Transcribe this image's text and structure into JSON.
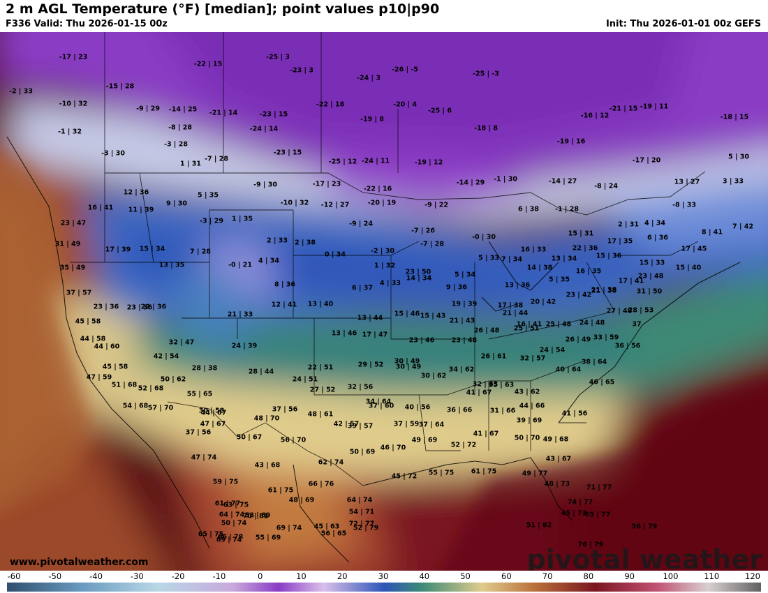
{
  "header": {
    "title": "2 m AGL Temperature (°F) [median]; point values p10|p90",
    "valid": "F336 Valid: Thu 2026-01-15 00z",
    "init": "Init: Thu 2026-01-01 00z GEFS"
  },
  "footer": {
    "website": "www.pivotalweather.com",
    "logo": "pivotal weather"
  },
  "colorbar": {
    "ticks": [
      "-60",
      "-50",
      "-40",
      "-30",
      "-20",
      "-10",
      "0",
      "10",
      "20",
      "30",
      "40",
      "50",
      "60",
      "70",
      "80",
      "90",
      "100",
      "110",
      "120"
    ],
    "units": "°F"
  },
  "points": [
    {
      "label": "-17 | 23"
    },
    {
      "label": "-25 | 3"
    },
    {
      "label": "-22 | 15"
    },
    {
      "label": "-23 | 3"
    },
    {
      "label": "-26 | -5"
    },
    {
      "label": "-25 | -3"
    },
    {
      "label": "-2 | 33"
    },
    {
      "label": "-15 | 28"
    },
    {
      "label": "-10 | 32"
    },
    {
      "label": "-24 | 3"
    },
    {
      "label": "-22 | 18"
    },
    {
      "label": "-20 | 4"
    },
    {
      "label": "-25 | 6"
    },
    {
      "label": "-9 | 29"
    },
    {
      "label": "-14 | 25"
    },
    {
      "label": "-21 | 14"
    },
    {
      "label": "-23 | 15"
    },
    {
      "label": "-19 | 8"
    },
    {
      "label": "-21 | 15"
    },
    {
      "label": "-19 | 11"
    },
    {
      "label": "-16 | 12"
    },
    {
      "label": "-18 | 15"
    },
    {
      "label": "-1 | 32"
    },
    {
      "label": "-8 | 28"
    },
    {
      "label": "-24 | 14"
    },
    {
      "label": "-18 | 8"
    },
    {
      "label": "-19 | 16"
    },
    {
      "label": "-3 | 28"
    },
    {
      "label": "-3 | 30"
    },
    {
      "label": "-23 | 15"
    },
    {
      "label": "-17 | 20"
    },
    {
      "label": "5 | 30"
    },
    {
      "label": "1 | 31"
    },
    {
      "label": "-7 | 28"
    },
    {
      "label": "-25 | 12"
    },
    {
      "label": "-24 | 11"
    },
    {
      "label": "-19 | 12"
    },
    {
      "label": "-14 | 27"
    },
    {
      "label": "-8 | 24"
    },
    {
      "label": "13 | 27"
    },
    {
      "label": "3 | 33"
    },
    {
      "label": "12 | 36"
    },
    {
      "label": "5 | 35"
    },
    {
      "label": "-9 | 30"
    },
    {
      "label": "-17 | 23"
    },
    {
      "label": "-22 | 16"
    },
    {
      "label": "-14 | 29"
    },
    {
      "label": "-1 | 30"
    },
    {
      "label": "16 | 41"
    },
    {
      "label": "11 | 39"
    },
    {
      "label": "9 | 30"
    },
    {
      "label": "-10 | 32"
    },
    {
      "label": "-12 | 27"
    },
    {
      "label": "-20 | 19"
    },
    {
      "label": "-9 | 22"
    },
    {
      "label": "6 | 38"
    },
    {
      "label": "-1 | 28"
    },
    {
      "label": "-8 | 33"
    },
    {
      "label": "23 | 47"
    },
    {
      "label": "-3 | 29"
    },
    {
      "label": "1 | 35"
    },
    {
      "label": "-9 | 24"
    },
    {
      "label": "-7 | 26"
    },
    {
      "label": "2 | 31"
    },
    {
      "label": "4 | 34"
    },
    {
      "label": "7 | 42"
    },
    {
      "label": "31 | 49"
    },
    {
      "label": "2 | 33"
    },
    {
      "label": "2 | 38"
    },
    {
      "label": "-7 | 28"
    },
    {
      "label": "-0 | 30"
    },
    {
      "label": "15 | 31"
    },
    {
      "label": "17 | 35"
    },
    {
      "label": "6 | 36"
    },
    {
      "label": "8 | 41"
    },
    {
      "label": "17 | 39"
    },
    {
      "label": "15 | 34"
    },
    {
      "label": "7 | 28"
    },
    {
      "label": "0 | 34"
    },
    {
      "label": "-2 | 30"
    },
    {
      "label": "16 | 33"
    },
    {
      "label": "22 | 36"
    },
    {
      "label": "15 | 36"
    },
    {
      "label": "17 | 45"
    },
    {
      "label": "35 | 49"
    },
    {
      "label": "13 | 35"
    },
    {
      "label": "-0 | 21"
    },
    {
      "label": "4 | 34"
    },
    {
      "label": "1 | 32"
    },
    {
      "label": "5 | 33"
    },
    {
      "label": "7 | 34"
    },
    {
      "label": "13 | 34"
    },
    {
      "label": "15 | 33"
    },
    {
      "label": "15 | 40"
    },
    {
      "label": "23 | 50"
    },
    {
      "label": "5 | 34"
    },
    {
      "label": "14 | 38"
    },
    {
      "label": "16 | 35"
    },
    {
      "label": "14 | 34"
    },
    {
      "label": "5 | 35"
    },
    {
      "label": "21 | 38"
    },
    {
      "label": "23 | 48"
    },
    {
      "label": "37 | 57"
    },
    {
      "label": "23 | 36"
    },
    {
      "label": "8 | 36"
    },
    {
      "label": "6 | 37"
    },
    {
      "label": "4 | 33"
    },
    {
      "label": "9 | 36"
    },
    {
      "label": "13 | 36"
    },
    {
      "label": "17 | 41"
    },
    {
      "label": "31 | 50"
    },
    {
      "label": "23 | 36"
    },
    {
      "label": "22 | 36"
    },
    {
      "label": "12 | 41"
    },
    {
      "label": "13 | 40"
    },
    {
      "label": "19 | 39"
    },
    {
      "label": "17 | 38"
    },
    {
      "label": "20 | 42"
    },
    {
      "label": "23 | 42"
    },
    {
      "label": "21 | 38"
    },
    {
      "label": "27 | 48"
    },
    {
      "label": "28 | 53"
    },
    {
      "label": "45 | 58"
    },
    {
      "label": "21 | 33"
    },
    {
      "label": "13 | 44"
    },
    {
      "label": "15 | 46"
    },
    {
      "label": "15 | 43"
    },
    {
      "label": "21 | 43"
    },
    {
      "label": "21 | 44"
    },
    {
      "label": "16 | 41"
    },
    {
      "label": "25 | 48"
    },
    {
      "label": "24 | 48"
    },
    {
      "label": "37"
    },
    {
      "label": "44 | 58"
    },
    {
      "label": "13 | 46"
    },
    {
      "label": "17 | 47"
    },
    {
      "label": "23 | 46"
    },
    {
      "label": "23 | 48"
    },
    {
      "label": "26 | 48"
    },
    {
      "label": "25 | 51"
    },
    {
      "label": "33 | 59"
    },
    {
      "label": "32 | 47"
    },
    {
      "label": "44 | 60"
    },
    {
      "label": "24 | 39"
    },
    {
      "label": "26 | 49"
    },
    {
      "label": "36 | 56"
    },
    {
      "label": "42 | 54"
    },
    {
      "label": "30 | 49"
    },
    {
      "label": "26 | 61"
    },
    {
      "label": "32 | 57"
    },
    {
      "label": "24 | 54"
    },
    {
      "label": "45 | 58"
    },
    {
      "label": "28 | 38"
    },
    {
      "label": "22 | 51"
    },
    {
      "label": "29 | 52"
    },
    {
      "label": "30 | 49"
    },
    {
      "label": "38 | 64"
    },
    {
      "label": "47 | 59"
    },
    {
      "label": "50 | 62"
    },
    {
      "label": "28 | 44"
    },
    {
      "label": "24 | 51"
    },
    {
      "label": "34 | 62"
    },
    {
      "label": "30 | 62"
    },
    {
      "label": "40 | 64"
    },
    {
      "label": "51 | 68"
    },
    {
      "label": "52 | 68"
    },
    {
      "label": "55 | 65"
    },
    {
      "label": "27 | 52"
    },
    {
      "label": "32 | 56"
    },
    {
      "label": "32 | 63"
    },
    {
      "label": "35 | 63"
    },
    {
      "label": "46 | 65"
    },
    {
      "label": "54 | 68"
    },
    {
      "label": "57 | 70"
    },
    {
      "label": "30 | 58"
    },
    {
      "label": "37 | 56"
    },
    {
      "label": "34 | 64"
    },
    {
      "label": "41 | 67"
    },
    {
      "label": "43 | 62"
    },
    {
      "label": "44 | 67"
    },
    {
      "label": "48 | 61"
    },
    {
      "label": "37 | 60"
    },
    {
      "label": "40 | 56"
    },
    {
      "label": "36 | 66"
    },
    {
      "label": "31 | 66"
    },
    {
      "label": "44 | 66"
    },
    {
      "label": "47 | 67"
    },
    {
      "label": "48 | 70"
    },
    {
      "label": "42 | 57"
    },
    {
      "label": "41 | 56"
    },
    {
      "label": "37 | 56"
    },
    {
      "label": "50 | 67"
    },
    {
      "label": "56 | 70"
    },
    {
      "label": "39 | 57"
    },
    {
      "label": "37 | 59"
    },
    {
      "label": "37 | 64"
    },
    {
      "label": "39 | 69"
    },
    {
      "label": "41 | 67"
    },
    {
      "label": "50 | 70"
    },
    {
      "label": "49 | 68"
    },
    {
      "label": "49 | 69"
    },
    {
      "label": "52 | 72"
    },
    {
      "label": "46 | 70"
    },
    {
      "label": "50 | 69"
    },
    {
      "label": "47 | 74"
    },
    {
      "label": "43 | 68"
    },
    {
      "label": "62 | 74"
    },
    {
      "label": "43 | 67"
    },
    {
      "label": "45 | 72"
    },
    {
      "label": "55 | 75"
    },
    {
      "label": "61 | 75"
    },
    {
      "label": "59 | 75"
    },
    {
      "label": "61 | 75"
    },
    {
      "label": "66 | 76"
    },
    {
      "label": "49 | 77"
    },
    {
      "label": "48 | 73"
    },
    {
      "label": "61 | 77"
    },
    {
      "label": "63 | 75"
    },
    {
      "label": "48 | 69"
    },
    {
      "label": "45 | 73"
    },
    {
      "label": "64 | 74"
    },
    {
      "label": "72 | 77"
    },
    {
      "label": "65 | 77"
    },
    {
      "label": "50 | 74"
    },
    {
      "label": "45 | 63"
    },
    {
      "label": "51 | 82"
    },
    {
      "label": "71 | 77"
    },
    {
      "label": "66 | 78"
    },
    {
      "label": "70 | 81"
    },
    {
      "label": "52 | 79"
    },
    {
      "label": "74 | 77"
    },
    {
      "label": "64 | 74"
    },
    {
      "label": "58 | 69"
    },
    {
      "label": "54 | 71"
    },
    {
      "label": "76 | 79"
    },
    {
      "label": "65 | 75"
    },
    {
      "label": "69 | 74"
    },
    {
      "label": "56 | 65"
    },
    {
      "label": "56 | 79"
    },
    {
      "label": "69 | 74"
    },
    {
      "label": "55 | 69"
    }
  ]
}
